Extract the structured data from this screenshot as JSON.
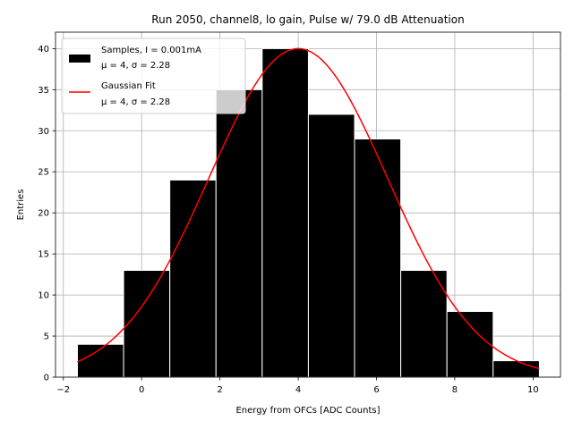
{
  "chart_data": {
    "type": "bar",
    "title": "Run 2050, channel8, lo gain, Pulse w/ 79.0 dB Attenuation",
    "xlabel": "Energy from OFCs [ADC Counts]",
    "ylabel": "Entries",
    "xlim": [
      -2.2,
      10.7
    ],
    "ylim": [
      0,
      42
    ],
    "xticks": [
      -2,
      0,
      2,
      4,
      6,
      8,
      10
    ],
    "xtick_labels": [
      "−2",
      "0",
      "2",
      "4",
      "6",
      "8",
      "10"
    ],
    "yticks": [
      0,
      5,
      10,
      15,
      20,
      25,
      30,
      35,
      40
    ],
    "ytick_labels": [
      "0",
      "5",
      "10",
      "15",
      "20",
      "25",
      "30",
      "35",
      "40"
    ],
    "grid": true,
    "legend_position": "top-left",
    "bin_edges": [
      -1.64,
      -0.46,
      0.72,
      1.9,
      3.08,
      4.26,
      5.44,
      6.62,
      7.8,
      8.98,
      10.16
    ],
    "values": [
      4,
      13,
      24,
      35,
      40,
      32,
      29,
      13,
      8,
      2
    ],
    "bar_color": "#000000",
    "fit": {
      "type": "gaussian",
      "amplitude": 40,
      "mu": 4,
      "sigma": 2.28,
      "x_range": [
        -1.64,
        10.16
      ],
      "color": "#ff0000"
    },
    "legend": [
      {
        "kind": "patch",
        "color": "#000000",
        "line1": "Samples, I = 0.001mA",
        "line2": "μ = 4, σ = 2.28"
      },
      {
        "kind": "line",
        "color": "#ff0000",
        "line1": "Gaussian Fit",
        "line2": "μ = 4, σ = 2.28"
      }
    ]
  }
}
